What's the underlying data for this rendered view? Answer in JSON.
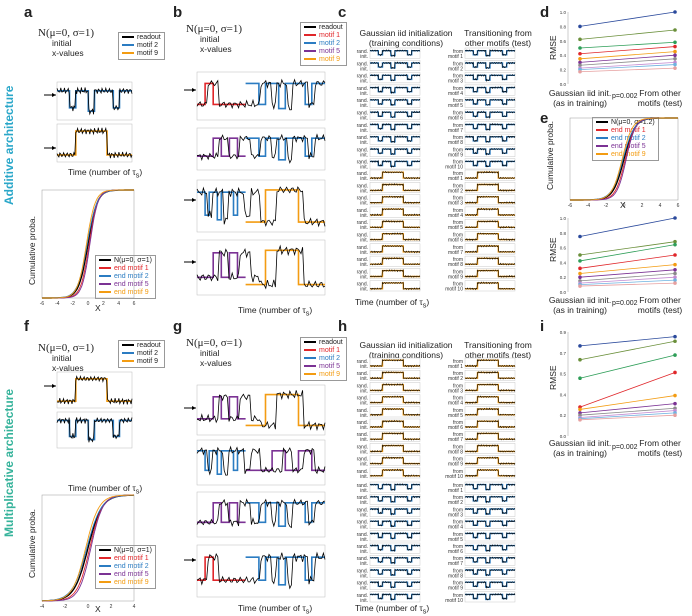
{
  "side_labels": {
    "additive": "Additive architecture",
    "multiplicative": "Multiplicative architecture"
  },
  "panel_labels": [
    "a",
    "b",
    "c",
    "d",
    "e",
    "f",
    "g",
    "h",
    "i"
  ],
  "init_text": {
    "dist": "N(μ=0, σ=1)",
    "line1": "initial",
    "line2": "x-values"
  },
  "time_label": "Time (number of τ",
  "time_sub": "s",
  "time_close": ")",
  "col_titles": {
    "left1": "Gaussian iid initialization",
    "left2": "(training conditions)",
    "right1": "Transitioning from",
    "right2": "other motifs (test)"
  },
  "row_labels_rand": [
    "rand.",
    "init."
  ],
  "row_labels_from": [
    "from",
    "motif 1",
    "motif 2",
    "motif 3",
    "motif 4",
    "motif 5",
    "motif 6",
    "motif 7",
    "motif 8",
    "motif 9",
    "motif 10"
  ],
  "legend_a": [
    "readout",
    "motif 2",
    "motif 9"
  ],
  "legend_b": [
    "readout",
    "motif 1",
    "motif 2",
    "motif 5",
    "motif 9"
  ],
  "legend_cdf": [
    "N(μ=0, σ=1)",
    "end motif 1",
    "end motif 2",
    "end motif 5",
    "end motif 9"
  ],
  "legend_e": [
    "N(μ=0, σ=1.2)",
    "end motif 1",
    "end motif 2",
    "end motif 5",
    "end motif 9"
  ],
  "colors": {
    "readout": "#000000",
    "motif1": "#e0262a",
    "motif2": "#2b7cc2",
    "motif5": "#7b3294",
    "motif9": "#f39c12"
  },
  "cdf_axes": {
    "ylabel": "Cumulative proba.",
    "xlabel": "X"
  },
  "rmse": {
    "ylabel": "RMSE",
    "xlabel_left1": "Gaussian iid init.",
    "xlabel_left2": "(as in training)",
    "xlabel_right1": "From other",
    "xlabel_right2": "motifs (test)",
    "sig": "**",
    "p": "p=0.002"
  },
  "chart_data": [
    {
      "panel": "d",
      "type": "line",
      "title": "",
      "xlabel": "",
      "ylabel": "RMSE",
      "categories": [
        "Gaussian iid init. (as in training)",
        "From other motifs (test)"
      ],
      "ylim": [
        0,
        1.0
      ],
      "series": [
        {
          "values": [
            0.8,
            1.0
          ]
        },
        {
          "values": [
            0.62,
            0.75
          ]
        },
        {
          "values": [
            0.5,
            0.58
          ]
        },
        {
          "values": [
            0.42,
            0.52
          ]
        },
        {
          "values": [
            0.35,
            0.45
          ]
        },
        {
          "values": [
            0.3,
            0.4
          ]
        },
        {
          "values": [
            0.26,
            0.35
          ]
        },
        {
          "values": [
            0.22,
            0.3
          ]
        },
        {
          "values": [
            0.2,
            0.27
          ]
        },
        {
          "values": [
            0.17,
            0.22
          ]
        }
      ]
    },
    {
      "panel": "e-rmse",
      "type": "line",
      "title": "",
      "xlabel": "",
      "ylabel": "RMSE",
      "categories": [
        "Gaussian iid init. (as in training)",
        "From other motifs (test)"
      ],
      "ylim": [
        0,
        1.0
      ],
      "series": [
        {
          "values": [
            0.75,
            1.0
          ]
        },
        {
          "values": [
            0.5,
            0.68
          ]
        },
        {
          "values": [
            0.42,
            0.64
          ]
        },
        {
          "values": [
            0.32,
            0.5
          ]
        },
        {
          "values": [
            0.25,
            0.37
          ]
        },
        {
          "values": [
            0.2,
            0.3
          ]
        },
        {
          "values": [
            0.15,
            0.25
          ]
        },
        {
          "values": [
            0.12,
            0.2
          ]
        },
        {
          "values": [
            0.1,
            0.16
          ]
        },
        {
          "values": [
            0.08,
            0.12
          ]
        }
      ]
    },
    {
      "panel": "i",
      "type": "line",
      "title": "",
      "xlabel": "",
      "ylabel": "RMSE",
      "categories": [
        "Gaussian iid init. (as in training)",
        "From other motifs (test)"
      ],
      "ylim": [
        0,
        0.9
      ],
      "series": [
        {
          "values": [
            0.78,
            0.86
          ]
        },
        {
          "values": [
            0.66,
            0.82
          ]
        },
        {
          "values": [
            0.5,
            0.7
          ]
        },
        {
          "values": [
            0.25,
            0.55
          ]
        },
        {
          "values": [
            0.23,
            0.35
          ]
        },
        {
          "values": [
            0.2,
            0.28
          ]
        },
        {
          "values": [
            0.18,
            0.24
          ]
        },
        {
          "values": [
            0.16,
            0.22
          ]
        },
        {
          "values": [
            0.15,
            0.2
          ]
        },
        {
          "values": [
            0.14,
            0.18
          ]
        }
      ]
    },
    {
      "panel": "a-cdf",
      "type": "line",
      "xlabel": "X",
      "ylabel": "Cumulative proba.",
      "xlim": [
        -6,
        6
      ],
      "ylim": [
        0,
        1
      ]
    },
    {
      "panel": "e-cdf",
      "type": "line",
      "xlabel": "X",
      "ylabel": "Cumulative proba.",
      "xlim": [
        -6,
        6
      ],
      "ylim": [
        0,
        1
      ]
    },
    {
      "panel": "f-cdf",
      "type": "line",
      "xlabel": "X",
      "ylabel": "Cumulative proba.",
      "xlim": [
        -4,
        4
      ],
      "ylim": [
        0,
        1
      ]
    }
  ]
}
